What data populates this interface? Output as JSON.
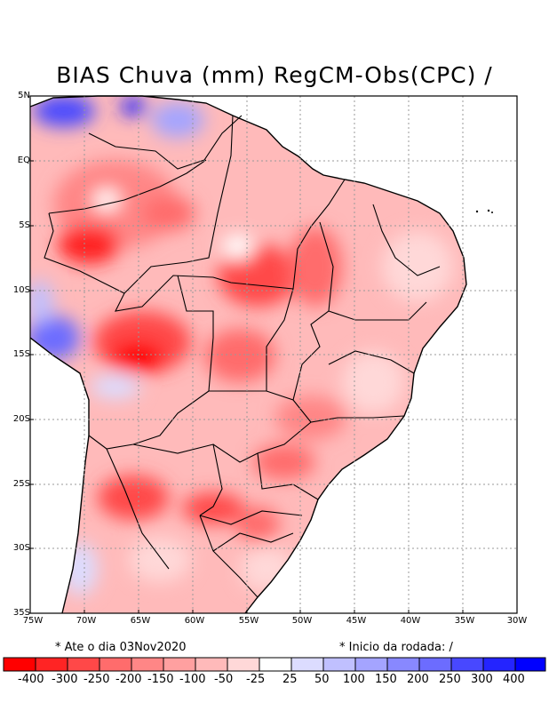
{
  "title": "BIAS Chuva (mm) RegCM-Obs(CPC) /",
  "map": {
    "lat_labels": [
      "5N",
      "EQ",
      "5S",
      "10S",
      "15S",
      "20S",
      "25S",
      "30S",
      "35S"
    ],
    "lon_labels": [
      "75W",
      "70W",
      "65W",
      "60W",
      "55W",
      "50W",
      "45W",
      "40W",
      "35W",
      "30W"
    ],
    "lat_range": [
      5,
      -35
    ],
    "lon_range": [
      -75,
      -30
    ]
  },
  "notes": {
    "left": "* Ate o dia 03Nov2020",
    "right": "* Inicio da rodada: /"
  },
  "colorbar": {
    "colors": [
      "#ff0000",
      "#ff2424",
      "#ff4848",
      "#ff6c6c",
      "#ff8686",
      "#ffa0a0",
      "#ffbaba",
      "#ffd8d8",
      "#ffffff",
      "#dcdcff",
      "#c0c0ff",
      "#a4a4ff",
      "#8888ff",
      "#6c6cff",
      "#4848ff",
      "#2424ff",
      "#0000ff"
    ],
    "labels": [
      "-400",
      "-300",
      "-250",
      "-200",
      "-150",
      "-100",
      "-50",
      "-25",
      "25",
      "50",
      "100",
      "150",
      "200",
      "250",
      "300",
      "400"
    ]
  },
  "colors": {
    "water": "#ffffff",
    "dry": "#ff4848",
    "wet": "#4848ff"
  }
}
